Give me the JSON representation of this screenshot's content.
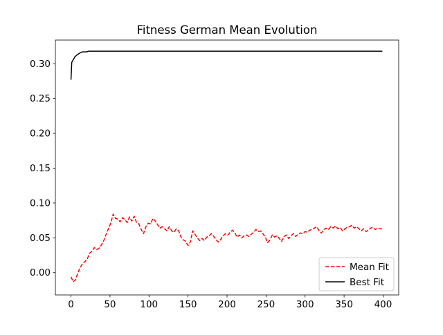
{
  "chart_data": {
    "type": "line",
    "title": "Fitness German Mean Evolution",
    "xlabel": "",
    "ylabel": "",
    "xlim": [
      -20,
      420
    ],
    "ylim": [
      -0.032,
      0.334
    ],
    "xticks": [
      0,
      50,
      100,
      150,
      200,
      250,
      300,
      350,
      400
    ],
    "yticks": [
      0.0,
      0.05,
      0.1,
      0.15,
      0.2,
      0.25,
      0.3
    ],
    "xtick_labels": [
      "0",
      "50",
      "100",
      "150",
      "200",
      "250",
      "300",
      "350",
      "400"
    ],
    "ytick_labels": [
      "0.00",
      "0.05",
      "0.10",
      "0.15",
      "0.20",
      "0.25",
      "0.30"
    ],
    "grid": false,
    "legend_position": "lower right",
    "series": [
      {
        "name": "Mean Fit",
        "style": "dashed",
        "color": "#ff0000",
        "points": [
          [
            0,
            -0.006
          ],
          [
            3,
            -0.013
          ],
          [
            6,
            -0.01
          ],
          [
            9,
            0.0
          ],
          [
            12,
            0.008
          ],
          [
            15,
            0.013
          ],
          [
            18,
            0.016
          ],
          [
            21,
            0.02
          ],
          [
            24,
            0.028
          ],
          [
            27,
            0.031
          ],
          [
            30,
            0.036
          ],
          [
            33,
            0.033
          ],
          [
            36,
            0.035
          ],
          [
            39,
            0.04
          ],
          [
            42,
            0.046
          ],
          [
            45,
            0.055
          ],
          [
            48,
            0.063
          ],
          [
            51,
            0.071
          ],
          [
            54,
            0.084
          ],
          [
            57,
            0.078
          ],
          [
            60,
            0.077
          ],
          [
            63,
            0.073
          ],
          [
            66,
            0.079
          ],
          [
            69,
            0.076
          ],
          [
            72,
            0.072
          ],
          [
            75,
            0.08
          ],
          [
            78,
            0.074
          ],
          [
            81,
            0.081
          ],
          [
            84,
            0.072
          ],
          [
            87,
            0.07
          ],
          [
            90,
            0.062
          ],
          [
            93,
            0.056
          ],
          [
            96,
            0.066
          ],
          [
            99,
            0.071
          ],
          [
            102,
            0.07
          ],
          [
            105,
            0.078
          ],
          [
            108,
            0.074
          ],
          [
            111,
            0.069
          ],
          [
            114,
            0.064
          ],
          [
            117,
            0.066
          ],
          [
            120,
            0.063
          ],
          [
            123,
            0.06
          ],
          [
            126,
            0.066
          ],
          [
            129,
            0.06
          ],
          [
            132,
            0.058
          ],
          [
            135,
            0.063
          ],
          [
            138,
            0.06
          ],
          [
            141,
            0.051
          ],
          [
            144,
            0.047
          ],
          [
            147,
            0.045
          ],
          [
            150,
            0.039
          ],
          [
            153,
            0.044
          ],
          [
            156,
            0.06
          ],
          [
            159,
            0.055
          ],
          [
            162,
            0.05
          ],
          [
            165,
            0.046
          ],
          [
            168,
            0.049
          ],
          [
            171,
            0.046
          ],
          [
            174,
            0.051
          ],
          [
            177,
            0.053
          ],
          [
            180,
            0.056
          ],
          [
            183,
            0.052
          ],
          [
            186,
            0.047
          ],
          [
            189,
            0.044
          ],
          [
            192,
            0.048
          ],
          [
            195,
            0.053
          ],
          [
            198,
            0.056
          ],
          [
            201,
            0.054
          ],
          [
            204,
            0.058
          ],
          [
            207,
            0.061
          ],
          [
            210,
            0.057
          ],
          [
            213,
            0.051
          ],
          [
            216,
            0.054
          ],
          [
            219,
            0.05
          ],
          [
            222,
            0.053
          ],
          [
            225,
            0.054
          ],
          [
            228,
            0.052
          ],
          [
            231,
            0.055
          ],
          [
            234,
            0.058
          ],
          [
            237,
            0.062
          ],
          [
            240,
            0.059
          ],
          [
            243,
            0.06
          ],
          [
            246,
            0.056
          ],
          [
            249,
            0.051
          ],
          [
            252,
            0.043
          ],
          [
            255,
            0.047
          ],
          [
            258,
            0.054
          ],
          [
            261,
            0.051
          ],
          [
            264,
            0.053
          ],
          [
            267,
            0.049
          ],
          [
            270,
            0.045
          ],
          [
            273,
            0.052
          ],
          [
            276,
            0.054
          ],
          [
            279,
            0.049
          ],
          [
            282,
            0.053
          ],
          [
            285,
            0.056
          ],
          [
            288,
            0.052
          ],
          [
            291,
            0.055
          ],
          [
            294,
            0.057
          ],
          [
            297,
            0.056
          ],
          [
            300,
            0.059
          ],
          [
            303,
            0.058
          ],
          [
            306,
            0.061
          ],
          [
            309,
            0.062
          ],
          [
            312,
            0.064
          ],
          [
            315,
            0.066
          ],
          [
            318,
            0.06
          ],
          [
            321,
            0.057
          ],
          [
            324,
            0.062
          ],
          [
            327,
            0.064
          ],
          [
            330,
            0.062
          ],
          [
            333,
            0.066
          ],
          [
            336,
            0.064
          ],
          [
            339,
            0.067
          ],
          [
            342,
            0.063
          ],
          [
            345,
            0.065
          ],
          [
            348,
            0.06
          ],
          [
            351,
            0.063
          ],
          [
            354,
            0.065
          ],
          [
            357,
            0.066
          ],
          [
            360,
            0.068
          ],
          [
            363,
            0.064
          ],
          [
            366,
            0.066
          ],
          [
            369,
            0.063
          ],
          [
            372,
            0.06
          ],
          [
            375,
            0.063
          ],
          [
            378,
            0.059
          ],
          [
            381,
            0.061
          ],
          [
            384,
            0.064
          ],
          [
            387,
            0.065
          ],
          [
            390,
            0.062
          ],
          [
            393,
            0.064
          ],
          [
            396,
            0.063
          ],
          [
            399,
            0.063
          ]
        ]
      },
      {
        "name": "Best Fit",
        "style": "solid",
        "color": "#000000",
        "points": [
          [
            0,
            0.277
          ],
          [
            1,
            0.302
          ],
          [
            3,
            0.306
          ],
          [
            5,
            0.31
          ],
          [
            8,
            0.313
          ],
          [
            11,
            0.315
          ],
          [
            14,
            0.317
          ],
          [
            20,
            0.317
          ],
          [
            22,
            0.318
          ],
          [
            60,
            0.318
          ],
          [
            200,
            0.318
          ],
          [
            399,
            0.318
          ]
        ]
      }
    ]
  }
}
